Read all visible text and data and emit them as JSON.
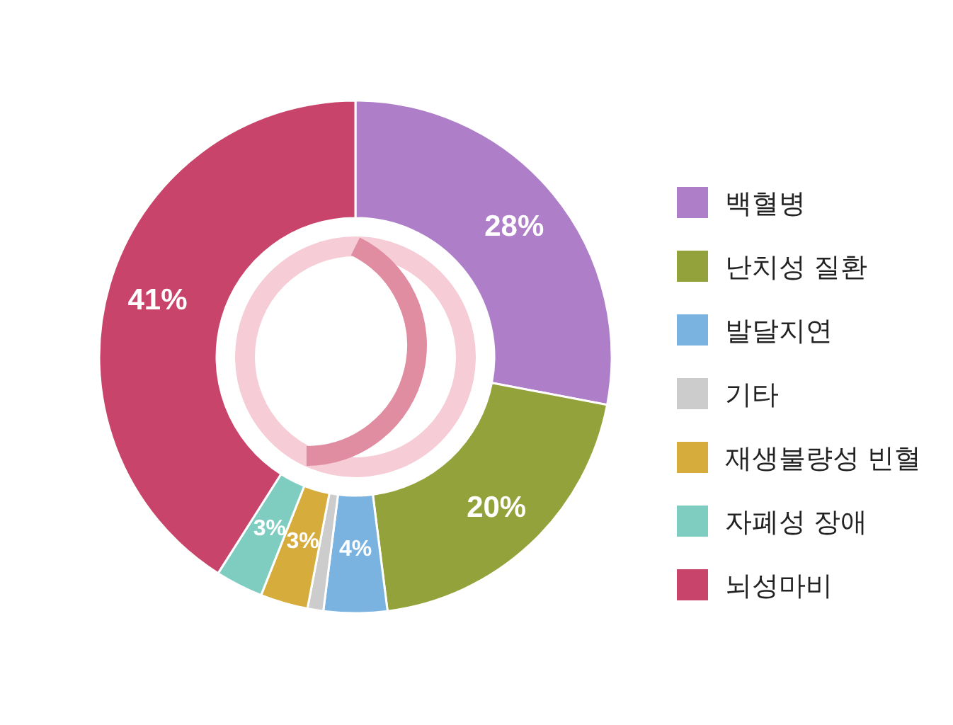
{
  "chart_data": {
    "type": "donut",
    "categories": [
      "백혈병",
      "난치성 질환",
      "발달지연",
      "기타",
      "재생불량성 빈혈",
      "자폐성 장애",
      "뇌성마비"
    ],
    "values": [
      28,
      20,
      4,
      1,
      3,
      3,
      41
    ],
    "colors": [
      "#ae7fc8",
      "#93a23a",
      "#7bb3e0",
      "#cccccc",
      "#d6ad3c",
      "#7fcdc1",
      "#c9446a"
    ],
    "value_labels": [
      "28%",
      "20%",
      "4%",
      null,
      "3%",
      "3%",
      "41%"
    ],
    "legend": "right"
  }
}
